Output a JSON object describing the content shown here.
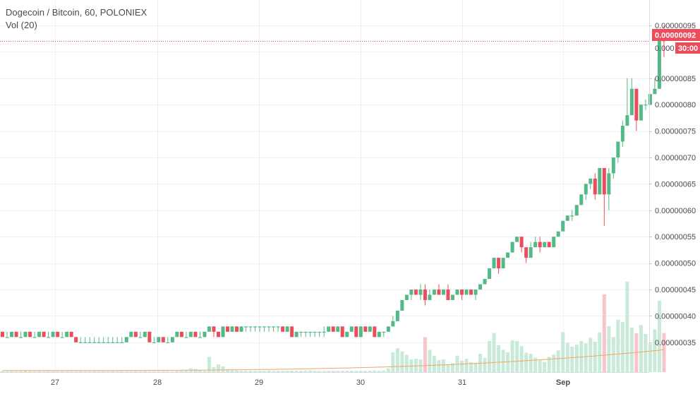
{
  "legend": {
    "title": "Dogecoin / Bitcoin, 60, POLONIEX",
    "volume": "Vol (20)"
  },
  "colors": {
    "up": "#53b987",
    "down": "#eb4d5c",
    "volume_up": "#c9ead9",
    "volume_down": "#f7c5ca",
    "volume_ma": "#f0a860",
    "grid": "#eef1f4",
    "axis_text": "#4a4a4a",
    "price_line": "#e0545e"
  },
  "chart_data": {
    "type": "candlestick",
    "symbol": "Dogecoin / Bitcoin",
    "interval": "60",
    "exchange": "POLONIEX",
    "x_tick_labels": [
      "27",
      "28",
      "29",
      "30",
      "31",
      "Sep"
    ],
    "y_tick_labels": [
      "0.00000095",
      "0.00000085",
      "0.00000080",
      "0.00000075",
      "0.00000070",
      "0.00000065",
      "0.00000060",
      "0.00000055",
      "0.00000050",
      "0.00000045",
      "0.00000040",
      "0.00000035"
    ],
    "ylim": [
      3.27e-07,
      9.62e-07
    ],
    "last_price_label": "0.00000092",
    "last_price": 9.2e-07,
    "countdown_label": "30:00",
    "countdown_under": "0.000",
    "candles": [
      [
        37,
        36,
        37,
        36
      ],
      [
        36,
        36,
        37,
        36
      ],
      [
        36,
        37,
        37,
        36
      ],
      [
        37,
        36,
        37,
        36
      ],
      [
        36,
        36,
        37,
        36
      ],
      [
        36,
        37,
        37,
        36
      ],
      [
        37,
        36,
        37,
        36
      ],
      [
        36,
        36,
        37,
        36
      ],
      [
        36,
        37,
        37,
        36
      ],
      [
        37,
        36,
        37,
        36
      ],
      [
        36,
        36,
        37,
        36
      ],
      [
        36,
        37,
        37,
        36
      ],
      [
        37,
        36,
        37,
        36
      ],
      [
        36,
        36,
        37,
        36
      ],
      [
        36,
        37,
        37,
        36
      ],
      [
        37,
        36,
        37,
        36
      ],
      [
        36,
        35,
        36,
        35
      ],
      [
        35,
        35,
        36,
        35
      ],
      [
        35,
        35,
        36,
        35
      ],
      [
        35,
        35,
        36,
        35
      ],
      [
        35,
        35,
        36,
        35
      ],
      [
        35,
        35,
        36,
        35
      ],
      [
        35,
        35,
        36,
        35
      ],
      [
        35,
        35,
        36,
        35
      ],
      [
        35,
        35,
        36,
        35
      ],
      [
        35,
        35,
        36,
        35
      ],
      [
        35,
        35,
        36,
        35
      ],
      [
        35,
        36,
        36,
        35
      ],
      [
        36,
        37,
        37,
        36
      ],
      [
        37,
        36,
        37,
        36
      ],
      [
        36,
        36,
        37,
        36
      ],
      [
        36,
        37,
        37,
        36
      ],
      [
        37,
        35,
        37,
        35
      ],
      [
        35,
        35,
        36,
        35
      ],
      [
        35,
        36,
        36,
        35
      ],
      [
        36,
        35,
        36,
        35
      ],
      [
        35,
        35,
        36,
        35
      ],
      [
        35,
        36,
        36,
        35
      ],
      [
        36,
        37,
        37,
        36
      ],
      [
        37,
        36,
        37,
        36
      ],
      [
        36,
        36,
        37,
        36
      ],
      [
        36,
        37,
        37,
        36
      ],
      [
        37,
        36,
        37,
        36
      ],
      [
        36,
        36,
        37,
        36
      ],
      [
        36,
        37,
        37,
        36
      ],
      [
        37,
        38,
        38,
        37
      ],
      [
        38,
        37,
        38,
        36
      ],
      [
        37,
        36,
        37,
        36
      ],
      [
        36,
        38,
        38,
        36
      ],
      [
        38,
        37,
        38,
        37
      ],
      [
        37,
        38,
        38,
        37
      ],
      [
        38,
        37,
        38,
        37
      ],
      [
        37,
        38,
        38,
        37
      ],
      [
        38,
        38,
        38,
        37
      ],
      [
        38,
        38,
        38,
        37
      ],
      [
        38,
        38,
        38,
        37
      ],
      [
        38,
        38,
        38,
        37
      ],
      [
        38,
        38,
        38,
        37
      ],
      [
        38,
        38,
        38,
        37
      ],
      [
        38,
        38,
        38,
        37
      ],
      [
        38,
        38,
        38,
        37
      ],
      [
        38,
        37,
        38,
        37
      ],
      [
        37,
        38,
        38,
        37
      ],
      [
        38,
        36,
        38,
        36
      ],
      [
        36,
        37,
        37,
        36
      ],
      [
        37,
        37,
        37,
        36
      ],
      [
        37,
        37,
        37,
        36
      ],
      [
        37,
        37,
        37,
        36
      ],
      [
        37,
        37,
        37,
        36
      ],
      [
        37,
        37,
        37,
        36
      ],
      [
        37,
        37,
        38,
        36
      ],
      [
        37,
        38,
        38,
        37
      ],
      [
        38,
        37,
        38,
        37
      ],
      [
        37,
        38,
        38,
        37
      ],
      [
        38,
        36,
        38,
        36
      ],
      [
        36,
        37,
        37,
        36
      ],
      [
        37,
        38,
        38,
        37
      ],
      [
        38,
        36,
        38,
        36
      ],
      [
        36,
        38,
        38,
        36
      ],
      [
        38,
        37,
        38,
        37
      ],
      [
        37,
        38,
        38,
        37
      ],
      [
        38,
        36,
        38,
        36
      ],
      [
        36,
        37,
        37,
        36
      ],
      [
        37,
        37,
        37,
        36
      ],
      [
        37,
        38,
        38,
        37
      ],
      [
        38,
        39,
        40,
        38
      ],
      [
        39,
        41,
        41,
        39
      ],
      [
        41,
        43,
        43,
        41
      ],
      [
        43,
        44,
        44,
        43
      ],
      [
        44,
        45,
        45,
        43
      ],
      [
        45,
        44,
        45,
        44
      ],
      [
        44,
        45,
        46,
        43
      ],
      [
        45,
        43,
        46,
        42
      ],
      [
        43,
        44,
        45,
        43
      ],
      [
        44,
        45,
        45,
        44
      ],
      [
        45,
        44,
        46,
        44
      ],
      [
        44,
        45,
        45,
        44
      ],
      [
        45,
        43,
        46,
        43
      ],
      [
        43,
        44,
        44,
        43
      ],
      [
        44,
        45,
        45,
        44
      ],
      [
        45,
        44,
        45,
        43
      ],
      [
        44,
        45,
        45,
        44
      ],
      [
        45,
        44,
        45,
        44
      ],
      [
        44,
        45,
        45,
        43
      ],
      [
        45,
        46,
        46,
        45
      ],
      [
        46,
        47,
        47,
        46
      ],
      [
        47,
        49,
        49,
        47
      ],
      [
        49,
        51,
        51,
        49
      ],
      [
        51,
        49,
        51,
        48
      ],
      [
        49,
        51,
        51,
        49
      ],
      [
        51,
        52,
        52,
        51
      ],
      [
        52,
        54,
        54,
        52
      ],
      [
        54,
        55,
        55,
        54
      ],
      [
        55,
        53,
        55,
        52
      ],
      [
        53,
        51,
        53,
        50
      ],
      [
        51,
        53,
        54,
        51
      ],
      [
        53,
        54,
        55,
        53
      ],
      [
        54,
        53,
        55,
        52
      ],
      [
        53,
        54,
        54,
        53
      ],
      [
        54,
        53,
        54,
        53
      ],
      [
        53,
        55,
        55,
        53
      ],
      [
        55,
        56,
        56,
        55
      ],
      [
        56,
        58,
        58,
        56
      ],
      [
        58,
        59,
        59,
        58
      ],
      [
        59,
        59,
        60,
        58
      ],
      [
        59,
        61,
        61,
        59
      ],
      [
        61,
        63,
        63,
        61
      ],
      [
        63,
        65,
        65,
        62
      ],
      [
        65,
        66,
        66,
        64
      ],
      [
        66,
        63,
        67,
        62
      ],
      [
        63,
        68,
        68,
        63
      ],
      [
        68,
        63,
        68,
        57
      ],
      [
        63,
        67,
        68,
        60
      ],
      [
        67,
        70,
        70,
        66
      ],
      [
        70,
        73,
        73,
        69
      ],
      [
        73,
        76,
        77,
        72
      ],
      [
        76,
        78,
        85,
        76
      ],
      [
        78,
        83,
        85,
        78
      ],
      [
        83,
        77,
        83,
        75
      ],
      [
        77,
        80,
        80,
        77
      ],
      [
        80,
        80,
        81,
        79
      ],
      [
        80,
        82,
        82,
        80
      ],
      [
        82,
        83,
        85,
        82
      ],
      [
        83,
        94,
        94,
        83
      ],
      [
        94,
        92,
        95,
        89
      ]
    ],
    "volumes": [
      [
        0.3,
        1
      ],
      [
        0.3,
        1
      ],
      [
        0.3,
        1
      ],
      [
        0.3,
        1
      ],
      [
        0.3,
        1
      ],
      [
        0.3,
        0
      ],
      [
        0.3,
        1
      ],
      [
        0.3,
        1
      ],
      [
        0.3,
        1
      ],
      [
        0.3,
        1
      ],
      [
        0.3,
        1
      ],
      [
        0.3,
        1
      ],
      [
        0.3,
        1
      ],
      [
        0.3,
        1
      ],
      [
        0.3,
        1
      ],
      [
        0.3,
        1
      ],
      [
        0.3,
        1
      ],
      [
        0.3,
        1
      ],
      [
        0.3,
        1
      ],
      [
        0.3,
        1
      ],
      [
        0.3,
        1
      ],
      [
        0.3,
        1
      ],
      [
        0.3,
        1
      ],
      [
        0.3,
        1
      ],
      [
        0.3,
        1
      ],
      [
        0.3,
        1
      ],
      [
        0.3,
        1
      ],
      [
        0.3,
        1
      ],
      [
        0.3,
        1
      ],
      [
        0.3,
        1
      ],
      [
        0.3,
        1
      ],
      [
        0.3,
        1
      ],
      [
        0.3,
        1
      ],
      [
        0.3,
        1
      ],
      [
        0.3,
        1
      ],
      [
        0.3,
        1
      ],
      [
        0.3,
        1
      ],
      [
        0.3,
        1
      ],
      [
        0.4,
        1
      ],
      [
        0.5,
        1
      ],
      [
        0.6,
        1
      ],
      [
        1.2,
        1
      ],
      [
        1.0,
        1
      ],
      [
        0.6,
        1
      ],
      [
        0.4,
        1
      ],
      [
        4.8,
        1
      ],
      [
        1.6,
        1
      ],
      [
        2.4,
        1
      ],
      [
        1.8,
        1
      ],
      [
        0.8,
        1
      ],
      [
        0.6,
        1
      ],
      [
        0.5,
        1
      ],
      [
        0.4,
        1
      ],
      [
        0.4,
        1
      ],
      [
        0.4,
        1
      ],
      [
        0.4,
        1
      ],
      [
        0.4,
        1
      ],
      [
        0.4,
        1
      ],
      [
        0.5,
        1
      ],
      [
        0.4,
        1
      ],
      [
        0.4,
        1
      ],
      [
        0.4,
        1
      ],
      [
        0.4,
        1
      ],
      [
        0.4,
        1
      ],
      [
        0.4,
        1
      ],
      [
        0.4,
        1
      ],
      [
        0.5,
        1
      ],
      [
        0.5,
        1
      ],
      [
        0.4,
        1
      ],
      [
        0.4,
        1
      ],
      [
        0.4,
        1
      ],
      [
        0.4,
        1
      ],
      [
        0.4,
        1
      ],
      [
        0.4,
        1
      ],
      [
        0.4,
        1
      ],
      [
        0.4,
        1
      ],
      [
        0.4,
        1
      ],
      [
        0.4,
        1
      ],
      [
        0.4,
        1
      ],
      [
        0.4,
        1
      ],
      [
        0.4,
        1
      ],
      [
        0.5,
        1
      ],
      [
        0.4,
        1
      ],
      [
        0.5,
        1
      ],
      [
        1.2,
        1
      ],
      [
        6.2,
        1
      ],
      [
        7.5,
        1
      ],
      [
        6.5,
        1
      ],
      [
        5.4,
        1
      ],
      [
        4.0,
        1
      ],
      [
        4.2,
        1
      ],
      [
        4.0,
        1
      ],
      [
        11.0,
        0
      ],
      [
        7.0,
        1
      ],
      [
        5.1,
        1
      ],
      [
        3.8,
        1
      ],
      [
        4.0,
        1
      ],
      [
        2.5,
        1
      ],
      [
        2.8,
        1
      ],
      [
        5.2,
        1
      ],
      [
        3.6,
        1
      ],
      [
        4.2,
        1
      ],
      [
        3.1,
        1
      ],
      [
        3.0,
        1
      ],
      [
        5.8,
        1
      ],
      [
        4.5,
        1
      ],
      [
        9.8,
        1
      ],
      [
        12.3,
        1
      ],
      [
        8.5,
        1
      ],
      [
        7.0,
        1
      ],
      [
        6.2,
        1
      ],
      [
        10.0,
        1
      ],
      [
        9.8,
        1
      ],
      [
        8.2,
        1
      ],
      [
        6.1,
        1
      ],
      [
        5.8,
        1
      ],
      [
        4.6,
        1
      ],
      [
        3.9,
        1
      ],
      [
        3.2,
        1
      ],
      [
        4.8,
        1
      ],
      [
        5.5,
        1
      ],
      [
        6.8,
        1
      ],
      [
        12.6,
        1
      ],
      [
        9.2,
        1
      ],
      [
        8.0,
        1
      ],
      [
        8.6,
        1
      ],
      [
        9.8,
        1
      ],
      [
        9.0,
        1
      ],
      [
        10.8,
        1
      ],
      [
        9.6,
        1
      ],
      [
        12.5,
        1
      ],
      [
        24.5,
        0
      ],
      [
        14.5,
        1
      ],
      [
        11.0,
        1
      ],
      [
        16.5,
        1
      ],
      [
        15.8,
        1
      ],
      [
        28.5,
        1
      ],
      [
        14.0,
        1
      ],
      [
        12.2,
        0
      ],
      [
        14.8,
        1
      ],
      [
        12.0,
        1
      ],
      [
        9.0,
        1
      ],
      [
        13.5,
        1
      ],
      [
        22.5,
        1
      ],
      [
        12.3,
        0
      ]
    ],
    "volume_ma_endpoints": [
      0.9,
      12.8
    ]
  }
}
